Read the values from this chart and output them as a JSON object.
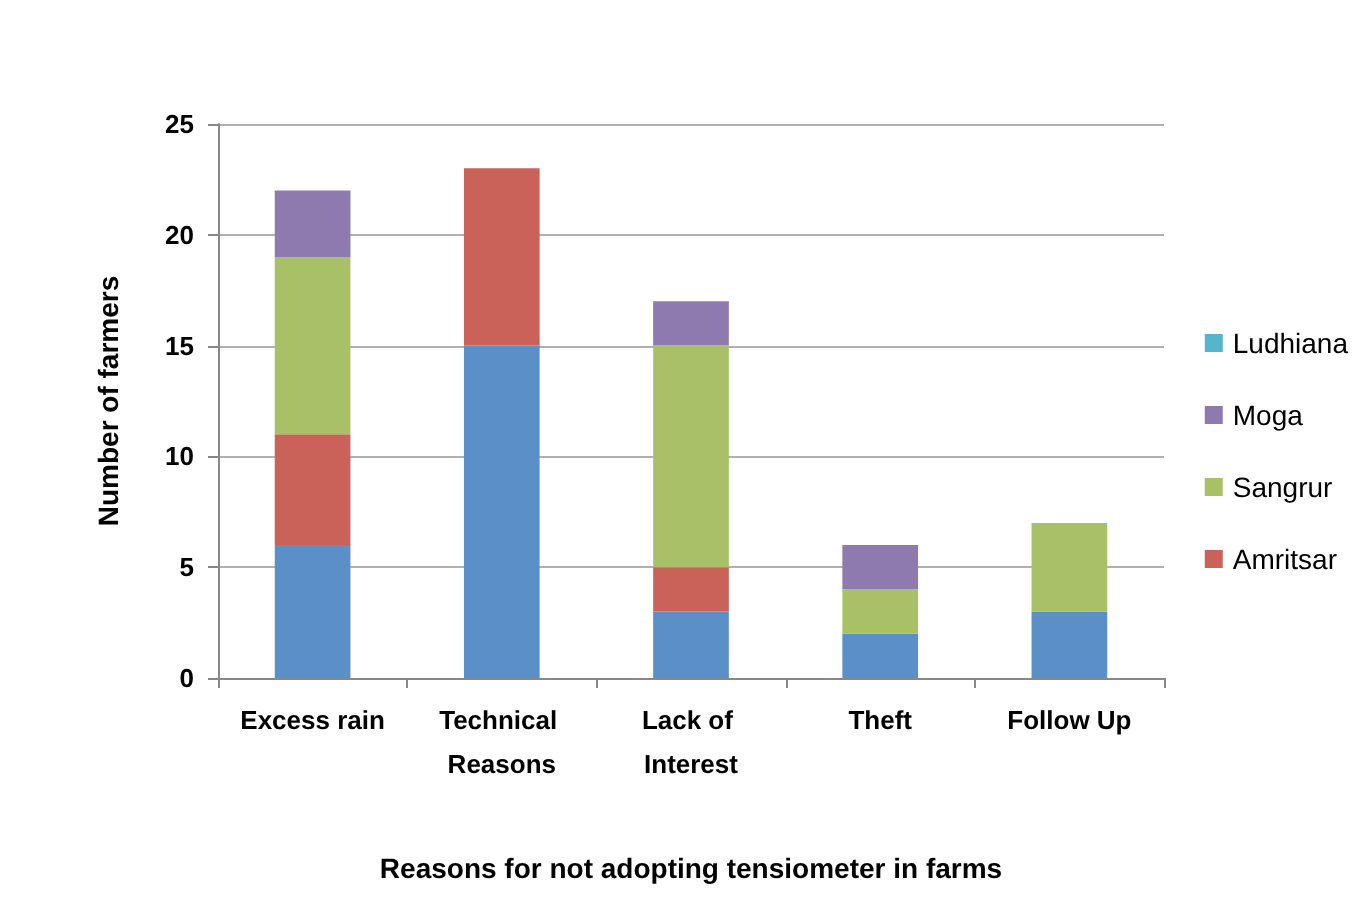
{
  "chart_data": {
    "type": "bar",
    "stacked": true,
    "xlabel": "Reasons for not adopting tensiometer in farms",
    "ylabel": "Number of farmers",
    "categories": [
      "Excess rain",
      "Technical Reasons",
      "Lack of Interest",
      "Theft",
      "Follow Up"
    ],
    "series": [
      {
        "color": "#5b8fc7",
        "values": [
          6,
          15,
          3,
          2,
          3
        ]
      },
      {
        "name": "Amritsar",
        "color": "#ca6259",
        "values": [
          5,
          8,
          2,
          null,
          null
        ]
      },
      {
        "name": "Sangrur",
        "color": "#a8c167",
        "values": [
          8,
          null,
          10,
          2,
          4
        ]
      },
      {
        "name": "Moga",
        "color": "#8f7ab0",
        "values": [
          3,
          null,
          2,
          2,
          null
        ]
      },
      {
        "name": "Ludhiana",
        "color": "#55b5cd",
        "values": [
          null,
          null,
          null,
          null,
          null
        ]
      }
    ],
    "ylim": [
      0,
      25
    ],
    "yticks": [
      0,
      5,
      10,
      15,
      20,
      25
    ],
    "grid": "y",
    "legend": "right"
  }
}
